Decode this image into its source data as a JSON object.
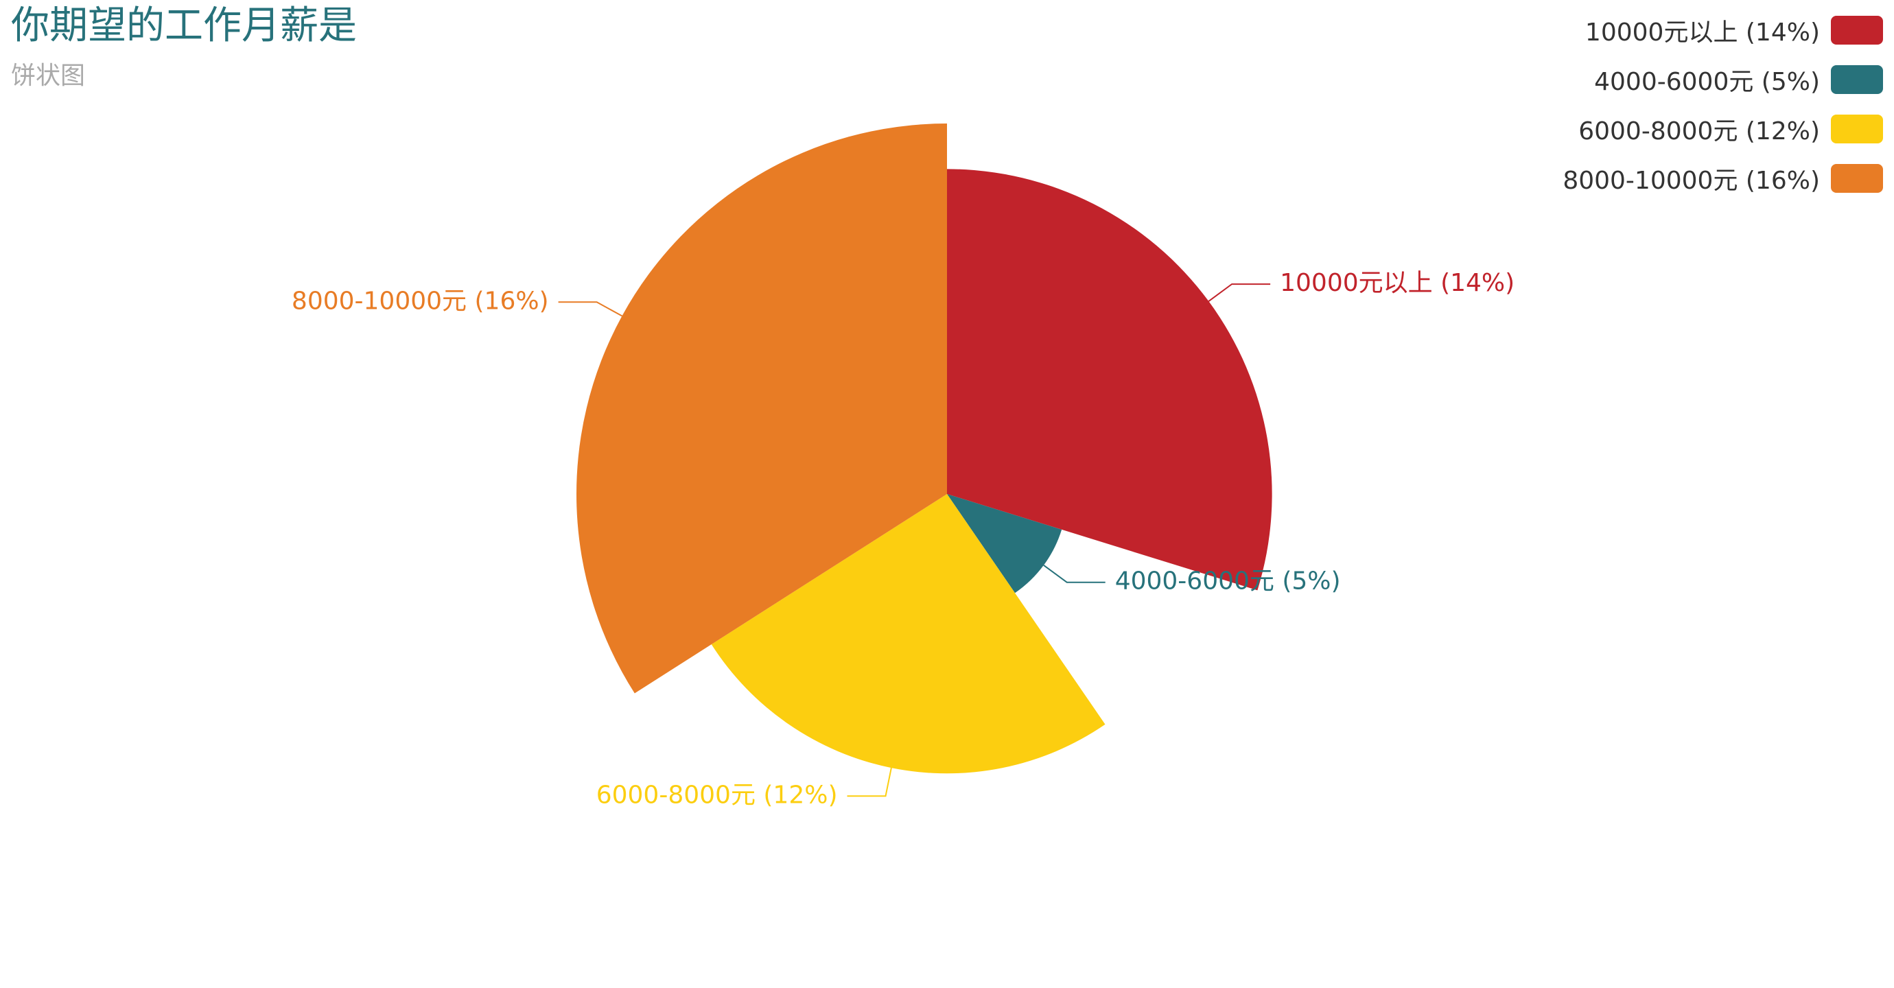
{
  "header": {
    "title": "你期望的工作月薪是",
    "subtitle": "饼状图"
  },
  "chart_data": {
    "type": "pie",
    "rose": true,
    "title": "你期望的工作月薪是",
    "subtitle": "饼状图",
    "legend_position": "top-right",
    "slices": [
      {
        "name": "10000元以上",
        "value": 14,
        "label": "10000元以上 (14%)",
        "color": "#c1232b"
      },
      {
        "name": "4000-6000元",
        "value": 5,
        "label": "4000-6000元 (5%)",
        "color": "#27727b"
      },
      {
        "name": "6000-8000元",
        "value": 12,
        "label": "6000-8000元 (12%)",
        "color": "#fcce10"
      },
      {
        "name": "8000-10000元",
        "value": 16,
        "label": "8000-10000元 (16%)",
        "color": "#e87c25"
      }
    ]
  }
}
